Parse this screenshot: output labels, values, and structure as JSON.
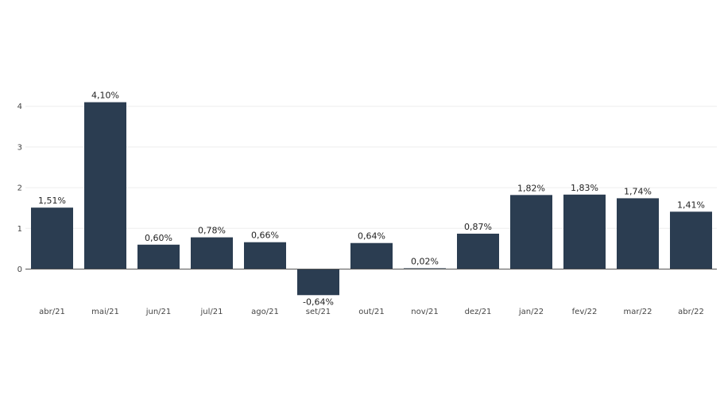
{
  "chart_data": {
    "type": "bar",
    "categories": [
      "abr/21",
      "mai/21",
      "jun/21",
      "jul/21",
      "ago/21",
      "set/21",
      "out/21",
      "nov/21",
      "dez/21",
      "jan/22",
      "fev/22",
      "mar/22",
      "abr/22"
    ],
    "values": [
      1.51,
      4.1,
      0.6,
      0.78,
      0.66,
      -0.64,
      0.64,
      0.02,
      0.87,
      1.82,
      1.83,
      1.74,
      1.41
    ],
    "data_labels": [
      "1,51%",
      "4,10%",
      "0,60%",
      "0,78%",
      "0,66%",
      "-0,64%",
      "0,64%",
      "0,02%",
      "0,87%",
      "1,82%",
      "1,83%",
      "1,74%",
      "1,41%"
    ],
    "y_ticks": [
      0,
      1,
      2,
      3,
      4
    ],
    "y_tick_labels": [
      "0",
      "1",
      "2",
      "3",
      "4"
    ],
    "ylim": [
      -0.64,
      4.1
    ],
    "grid": true,
    "bar_color": "#2b3d51",
    "grid_color": "#eeeeee",
    "axis_color": "#555555",
    "title": "",
    "xlabel": "",
    "ylabel": ""
  }
}
